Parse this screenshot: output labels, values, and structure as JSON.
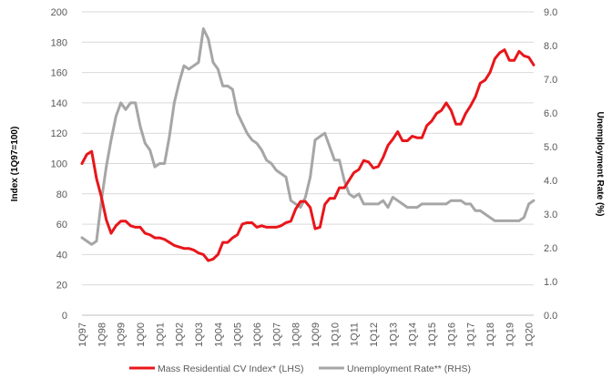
{
  "chart_data": {
    "type": "line",
    "xlabel": "",
    "ylabel_left": "Index (1Q97=100)",
    "ylabel_right": "Unemployment Rate (%)",
    "ylim_left": [
      0,
      200
    ],
    "yticks_left": [
      "0",
      "20",
      "40",
      "60",
      "80",
      "100",
      "120",
      "140",
      "160",
      "180",
      "200"
    ],
    "ylim_right": [
      0,
      9
    ],
    "yticks_right": [
      "0.0",
      "1.0",
      "2.0",
      "3.0",
      "4.0",
      "5.0",
      "6.0",
      "7.0",
      "8.0",
      "9.0"
    ],
    "x_tick_labels": [
      "1Q97",
      "1Q98",
      "1Q99",
      "1Q00",
      "1Q01",
      "1Q02",
      "1Q03",
      "1Q04",
      "1Q05",
      "1Q06",
      "1Q07",
      "1Q08",
      "1Q09",
      "1Q10",
      "1Q11",
      "1Q12",
      "1Q13",
      "1Q14",
      "1Q15",
      "1Q16",
      "1Q17",
      "1Q18",
      "1Q19",
      "1Q20"
    ],
    "gridlines": true,
    "legend_position": "bottom",
    "series": [
      {
        "name": "Mass Residential CV Index* (LHS)",
        "axis": "left",
        "color": "#e8161b",
        "start": "1Q97",
        "frequency": "quarterly",
        "values": [
          100,
          106,
          108,
          90,
          78,
          63,
          54,
          59,
          62,
          62,
          59,
          58,
          58,
          54,
          53,
          51,
          51,
          50,
          48,
          46,
          45,
          44,
          44,
          43,
          41,
          40,
          36,
          37,
          40,
          48,
          48,
          51,
          53,
          60,
          61,
          61,
          58,
          59,
          58,
          58,
          58,
          59,
          61,
          62,
          70,
          75,
          75,
          71,
          57,
          58,
          73,
          77,
          77,
          84,
          84,
          89,
          94,
          96,
          102,
          101,
          97,
          98,
          104,
          112,
          116,
          121,
          115,
          115,
          118,
          117,
          117,
          125,
          128,
          133,
          135,
          140,
          135,
          126,
          126,
          133,
          138,
          144,
          153,
          155,
          160,
          169,
          173,
          175,
          168,
          168,
          174,
          171,
          170,
          165
        ]
      },
      {
        "name": "Unemployment Rate** (RHS)",
        "axis": "right",
        "color": "#a6a6a6",
        "start": "1Q97",
        "frequency": "quarterly",
        "values": [
          2.3,
          2.2,
          2.1,
          2.2,
          3.4,
          4.4,
          5.2,
          5.9,
          6.3,
          6.1,
          6.3,
          6.3,
          5.6,
          5.1,
          4.9,
          4.4,
          4.5,
          4.5,
          5.3,
          6.3,
          6.9,
          7.4,
          7.3,
          7.4,
          7.5,
          8.5,
          8.2,
          7.5,
          7.3,
          6.8,
          6.8,
          6.7,
          6.0,
          5.7,
          5.4,
          5.2,
          5.1,
          4.9,
          4.6,
          4.5,
          4.3,
          4.2,
          4.1,
          3.4,
          3.3,
          3.2,
          3.5,
          4.1,
          5.2,
          5.3,
          5.4,
          5.0,
          4.6,
          4.6,
          4.0,
          3.6,
          3.5,
          3.6,
          3.3,
          3.3,
          3.3,
          3.3,
          3.4,
          3.2,
          3.5,
          3.4,
          3.3,
          3.2,
          3.2,
          3.2,
          3.3,
          3.3,
          3.3,
          3.3,
          3.3,
          3.3,
          3.4,
          3.4,
          3.4,
          3.3,
          3.3,
          3.1,
          3.1,
          3.0,
          2.9,
          2.8,
          2.8,
          2.8,
          2.8,
          2.8,
          2.8,
          2.9,
          3.3,
          3.4
        ]
      }
    ]
  }
}
